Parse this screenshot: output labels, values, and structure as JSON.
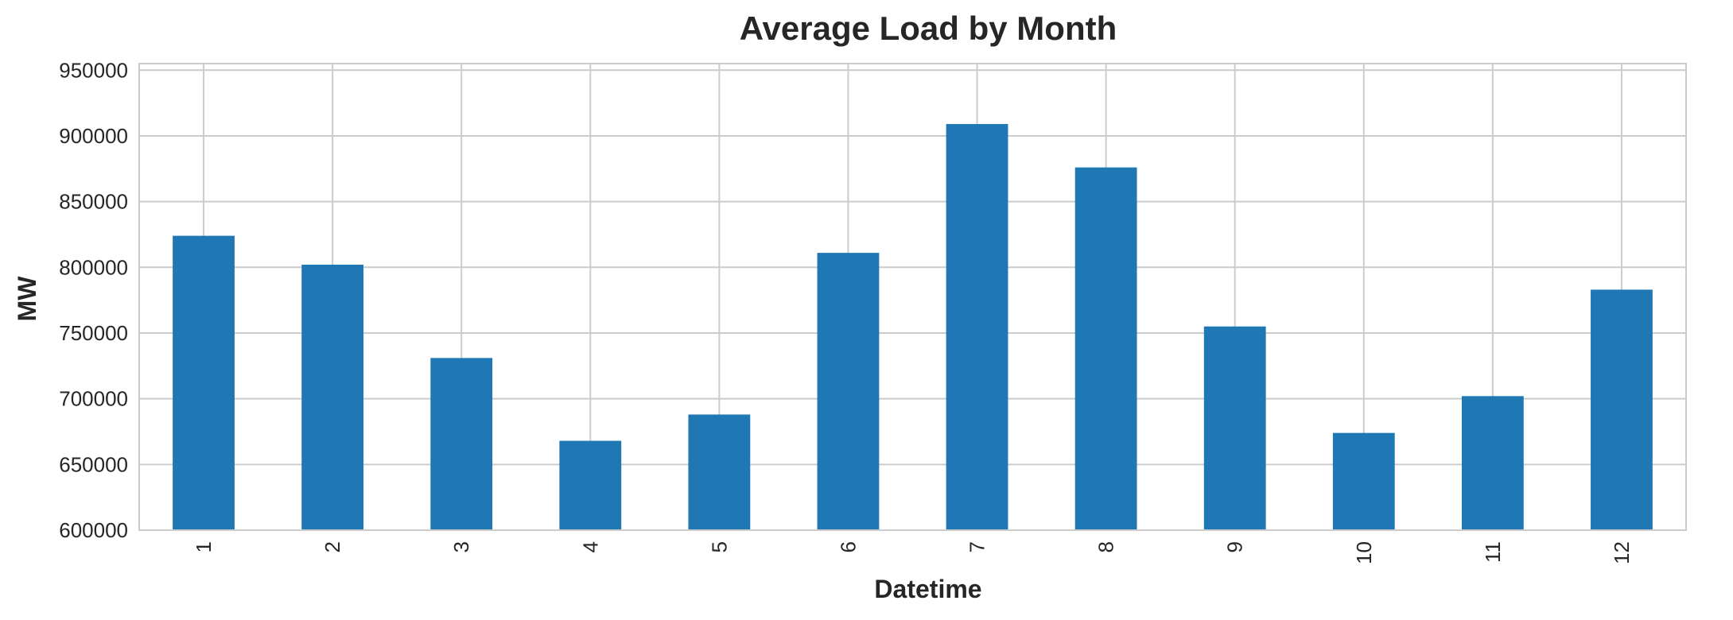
{
  "chart_data": {
    "type": "bar",
    "title": "Average Load by Month",
    "xlabel": "Datetime",
    "ylabel": "MW",
    "categories": [
      "1",
      "2",
      "3",
      "4",
      "5",
      "6",
      "7",
      "8",
      "9",
      "10",
      "11",
      "12"
    ],
    "values": [
      824000,
      802000,
      731000,
      668000,
      688000,
      811000,
      909000,
      876000,
      755000,
      674000,
      702000,
      783000
    ],
    "ylim": [
      600000,
      955000
    ],
    "yticks": [
      "600000",
      "650000",
      "700000",
      "750000",
      "800000",
      "850000",
      "900000",
      "950000"
    ],
    "grid": true,
    "bar_color": "#1f77b4",
    "x_tick_rotation": "vertical"
  }
}
